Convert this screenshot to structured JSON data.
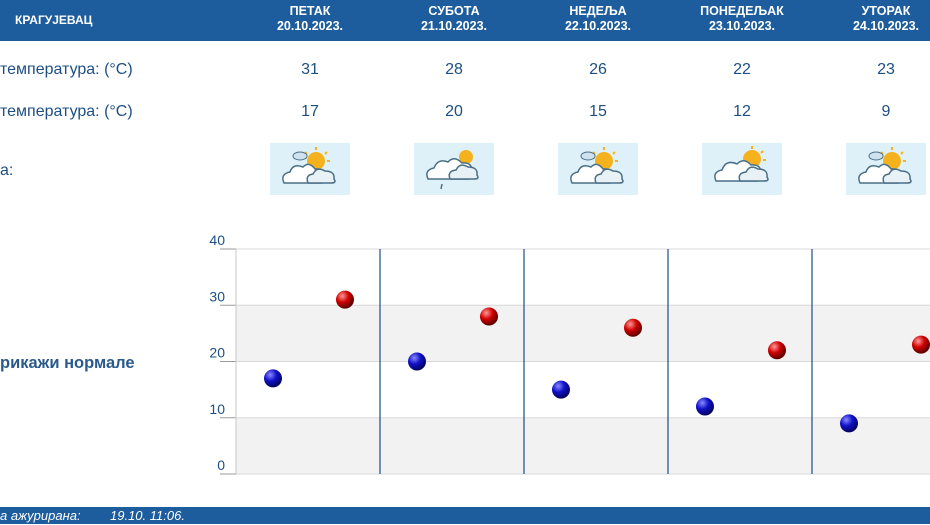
{
  "header": {
    "city": "КРАГУЈЕВАЦ"
  },
  "days": [
    {
      "name": "ПЕТАК",
      "date": "20.10.2023.",
      "max": 31,
      "min": 17,
      "icon": "partly-cloudy-icon"
    },
    {
      "name": "СУБОТА",
      "date": "21.10.2023.",
      "max": 28,
      "min": 20,
      "icon": "cloudy-light-rain-icon"
    },
    {
      "name": "НЕДЕЉА",
      "date": "22.10.2023.",
      "max": 26,
      "min": 15,
      "icon": "partly-cloudy-icon"
    },
    {
      "name": "ПОНЕДЕЉАК",
      "date": "23.10.2023.",
      "max": 22,
      "min": 12,
      "icon": "cloudy-sun-icon"
    },
    {
      "name": "УТОРАК",
      "date": "24.10.2023.",
      "max": 23,
      "min": 9,
      "icon": "partly-cloudy-icon"
    }
  ],
  "rows": {
    "max_label": "температура: (°C)",
    "min_label": "температура: (°C)",
    "icon_label": "а:"
  },
  "show_normals": "рикажи нормале",
  "footer": {
    "updated_label": "а ажурирана:",
    "updated_value": "19.10. 11:06."
  },
  "chart_data": {
    "type": "scatter",
    "categories": [
      "ПЕТАК",
      "СУБОТА",
      "НЕДЕЉА",
      "ПОНЕДЕЉАК",
      "УТОРАК"
    ],
    "series": [
      {
        "values": [
          17,
          20,
          15,
          12,
          9
        ],
        "color": "#0a0aa8"
      },
      {
        "values": [
          31,
          28,
          26,
          22,
          23
        ],
        "color": "#c40000"
      }
    ],
    "y_ticks": [
      0,
      10,
      20,
      30,
      40
    ],
    "ylim": [
      0,
      40
    ],
    "grid": true
  },
  "colors": {
    "header": "#1d5d9e",
    "text": "#1d4f82",
    "grid_band": "#f2f2f2",
    "divider": "#1d4f82"
  }
}
